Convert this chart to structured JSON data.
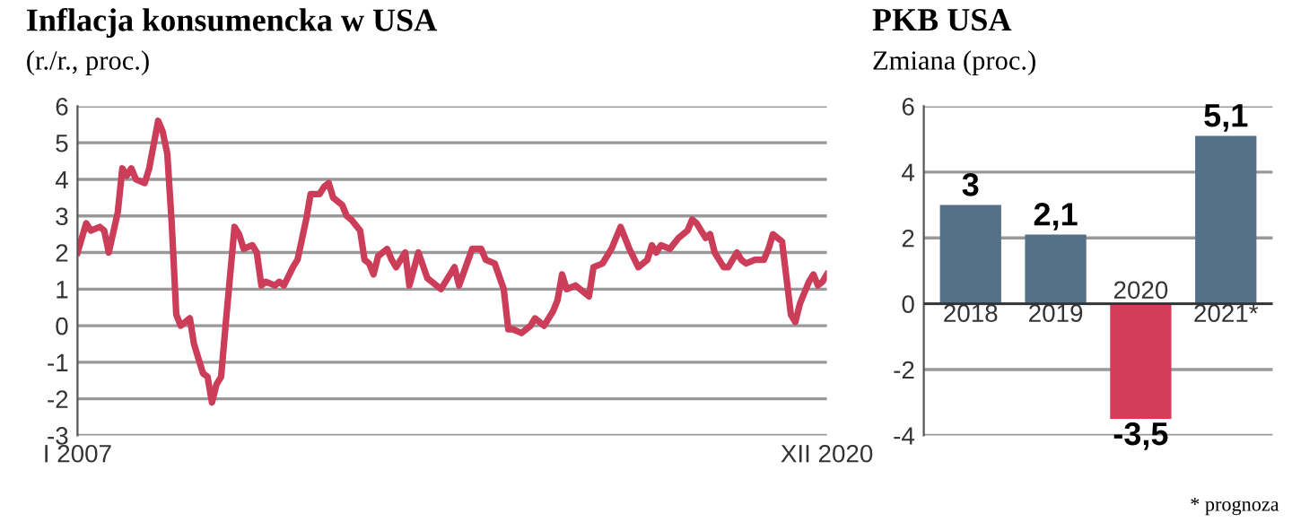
{
  "chart_data": [
    {
      "type": "line",
      "title": "Inflacja konsumencka w USA",
      "subtitle": "(r./r., proc.)",
      "series": [
        {
          "color": "#cc3d5a",
          "x": [
            "2007-01",
            "2007-03",
            "2007-04",
            "2007-06",
            "2007-07",
            "2007-08",
            "2007-10",
            "2007-11",
            "2007-12",
            "2008-01",
            "2008-02",
            "2008-04",
            "2008-05",
            "2008-07",
            "2008-08",
            "2008-09",
            "2008-10",
            "2008-11",
            "2008-12",
            "2009-02",
            "2009-03",
            "2009-05",
            "2009-06",
            "2009-07",
            "2009-08",
            "2009-09",
            "2009-10",
            "2009-12",
            "2010-01",
            "2010-02",
            "2010-04",
            "2010-05",
            "2010-06",
            "2010-07",
            "2010-09",
            "2010-10",
            "2010-11",
            "2011-01",
            "2011-02",
            "2011-04",
            "2011-05",
            "2011-07",
            "2011-08",
            "2011-09",
            "2011-10",
            "2011-12",
            "2012-01",
            "2012-02",
            "2012-04",
            "2012-05",
            "2012-06",
            "2012-07",
            "2012-08",
            "2012-10",
            "2012-11",
            "2012-12",
            "2013-02",
            "2013-03",
            "2013-05",
            "2013-07",
            "2013-10",
            "2014-01",
            "2014-02",
            "2014-05",
            "2014-07",
            "2014-08",
            "2014-10",
            "2014-12",
            "2015-01",
            "2015-02",
            "2015-04",
            "2015-06",
            "2015-07",
            "2015-09",
            "2015-11",
            "2015-12",
            "2016-01",
            "2016-02",
            "2016-04",
            "2016-05",
            "2016-07",
            "2016-08",
            "2016-10",
            "2016-12",
            "2017-02",
            "2017-04",
            "2017-06",
            "2017-08",
            "2017-09",
            "2017-10",
            "2017-11",
            "2018-01",
            "2018-03",
            "2018-05",
            "2018-06",
            "2018-07",
            "2018-08",
            "2018-09",
            "2018-10",
            "2018-11",
            "2019-01",
            "2019-02",
            "2019-04",
            "2019-05",
            "2019-06",
            "2019-08",
            "2019-10",
            "2019-11",
            "2019-12",
            "2020-02",
            "2020-04",
            "2020-05",
            "2020-06",
            "2020-08",
            "2020-09",
            "2020-10",
            "2020-11",
            "2020-12"
          ],
          "values": [
            2.0,
            2.8,
            2.6,
            2.7,
            2.6,
            2.0,
            3.1,
            4.3,
            4.1,
            4.3,
            4.0,
            3.9,
            4.3,
            5.6,
            5.3,
            4.7,
            2.8,
            0.3,
            0.0,
            0.2,
            -0.5,
            -1.3,
            -1.4,
            -2.1,
            -1.6,
            -1.4,
            0.0,
            2.7,
            2.5,
            2.1,
            2.2,
            2.0,
            1.1,
            1.2,
            1.1,
            1.2,
            1.1,
            1.6,
            1.8,
            2.9,
            3.6,
            3.6,
            3.8,
            3.9,
            3.5,
            3.3,
            3.0,
            2.9,
            2.6,
            1.8,
            1.7,
            1.4,
            1.9,
            2.1,
            1.8,
            1.6,
            2.0,
            1.1,
            2.0,
            1.3,
            1.0,
            1.6,
            1.1,
            2.1,
            2.1,
            1.8,
            1.7,
            1.0,
            -0.1,
            -0.1,
            -0.2,
            0.0,
            0.2,
            0.0,
            0.4,
            0.7,
            1.4,
            1.0,
            1.1,
            1.0,
            0.8,
            1.6,
            1.7,
            2.1,
            2.7,
            2.1,
            1.6,
            1.8,
            2.2,
            2.0,
            2.2,
            2.1,
            2.4,
            2.6,
            2.9,
            2.8,
            2.6,
            2.4,
            2.5,
            2.0,
            1.6,
            1.6,
            2.0,
            1.8,
            1.7,
            1.8,
            1.8,
            2.1,
            2.5,
            2.3,
            0.3,
            0.1,
            0.6,
            1.2,
            1.4,
            1.1,
            1.2,
            1.4
          ]
        }
      ],
      "xlim": [
        "2007-01",
        "2020-12"
      ],
      "xticks": [
        {
          "value": "2007-01",
          "label": "I 2007"
        },
        {
          "value": "2020-12",
          "label": "XII 2020"
        }
      ],
      "ylim": [
        -3,
        6
      ],
      "yticks": [
        -3,
        -2,
        -1,
        0,
        1,
        2,
        3,
        4,
        5,
        6
      ],
      "grid": "y",
      "legend": false
    },
    {
      "type": "bar",
      "title": "PKB USA",
      "subtitle": "Zmiana (proc.)",
      "categories": [
        "2018",
        "2019",
        "2020",
        "2021*"
      ],
      "values": [
        3,
        2.1,
        -3.5,
        5.1
      ],
      "colors": [
        "#557089",
        "#557089",
        "#d43d5a",
        "#557089"
      ],
      "value_labels": [
        "3",
        "2,1",
        "-3,5",
        "5,1"
      ],
      "ylim": [
        -4,
        6
      ],
      "yticks": [
        -4,
        -2,
        0,
        2,
        4,
        6
      ],
      "grid": "y",
      "legend": false,
      "annotations": [
        "* prognoza"
      ]
    }
  ]
}
